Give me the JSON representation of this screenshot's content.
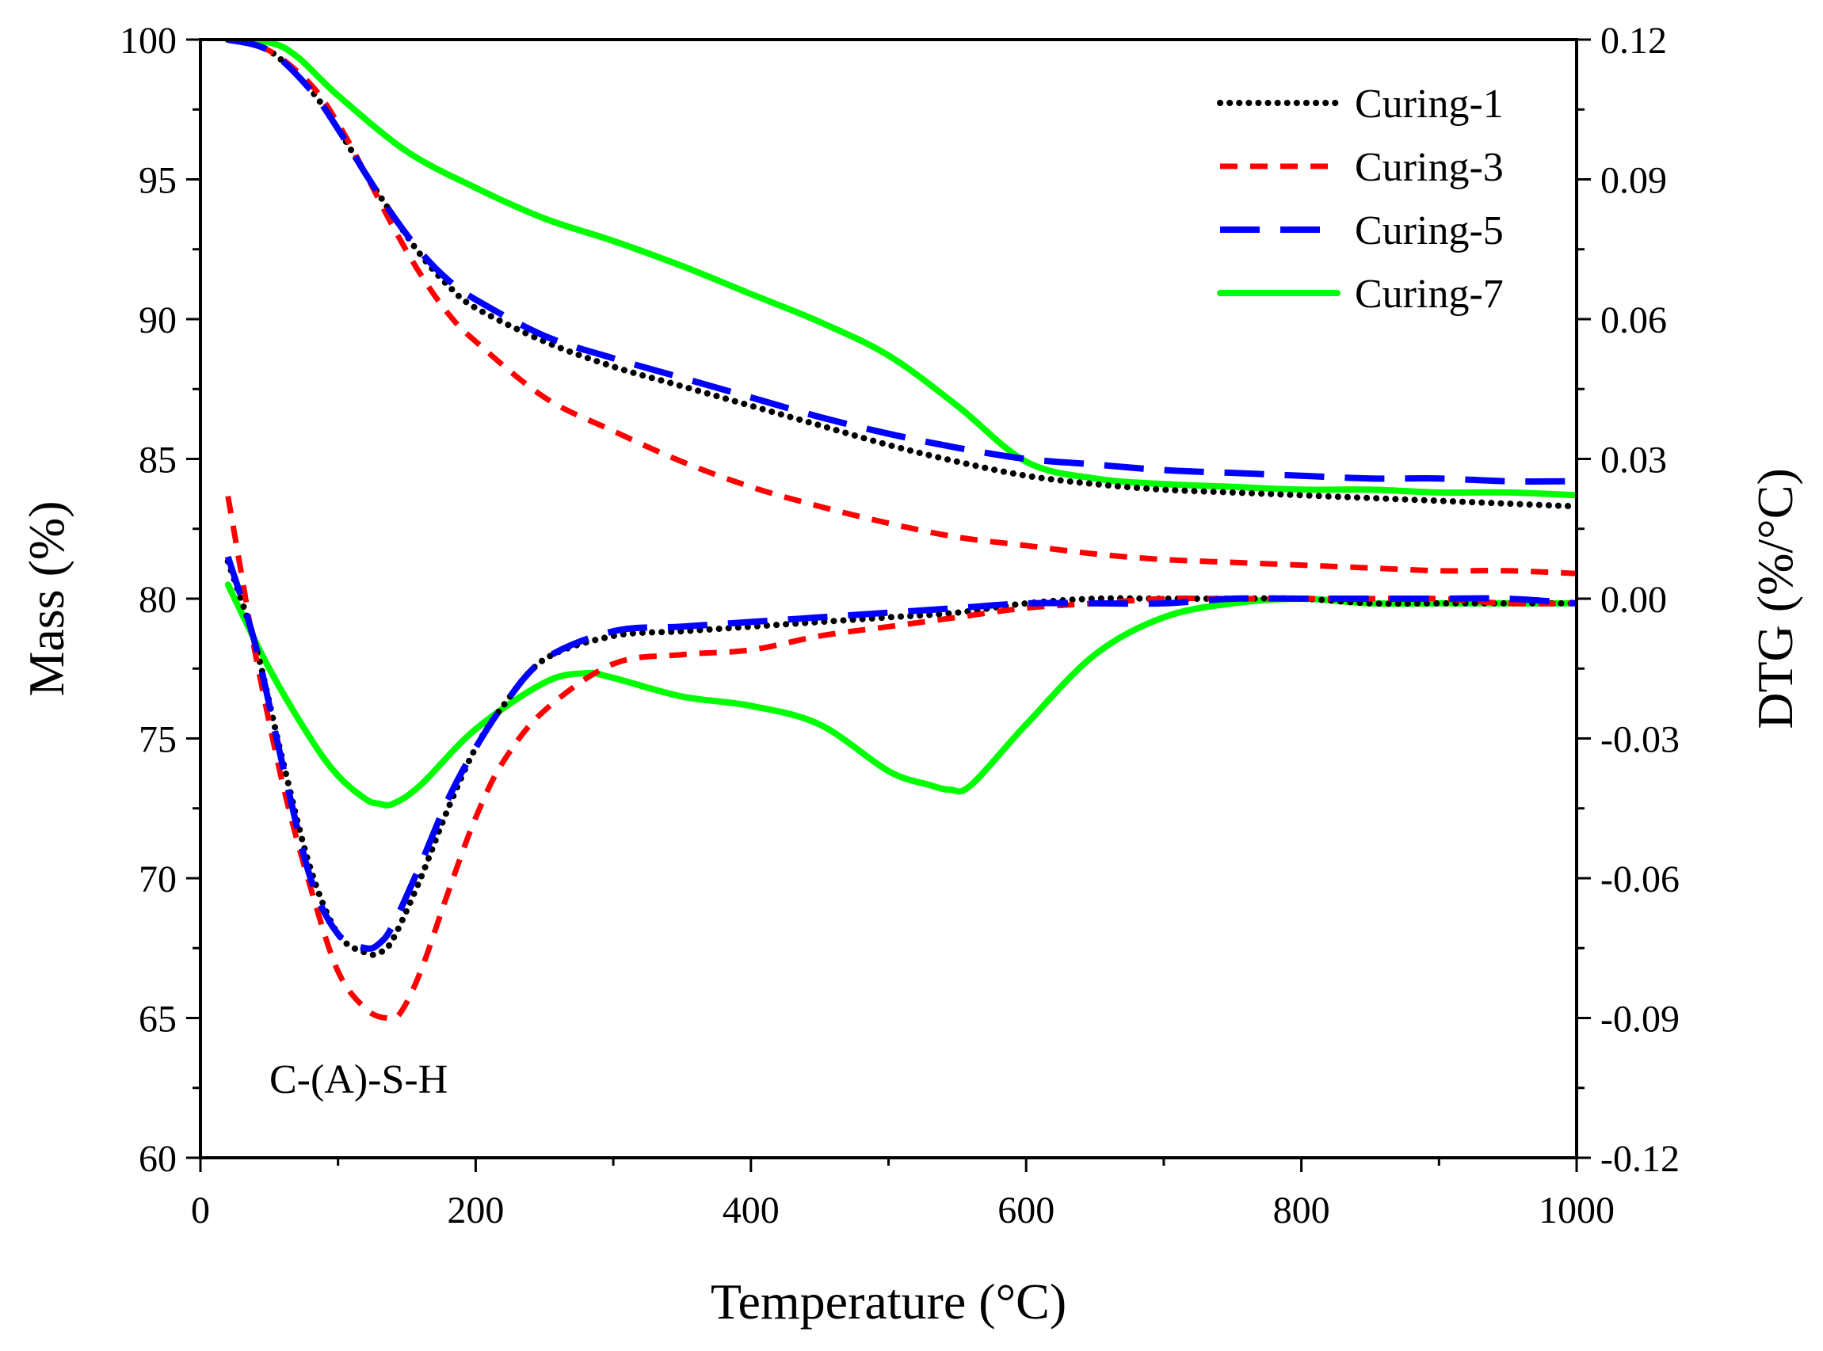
{
  "chart_data": {
    "type": "line",
    "xlabel": "Temperature (°C)",
    "ylabel_left": "Mass (%)",
    "ylabel_right": "DTG (%/°C)",
    "xlim": [
      0,
      1000
    ],
    "ylim_left": [
      60,
      100
    ],
    "ylim_right": [
      -0.12,
      0.12
    ],
    "xticks": [
      "0",
      "200",
      "400",
      "600",
      "800",
      "1000"
    ],
    "yticks_left": [
      "60",
      "65",
      "70",
      "75",
      "80",
      "85",
      "90",
      "95",
      "100"
    ],
    "yticks_right": [
      "-0.12",
      "-0.09",
      "-0.06",
      "-0.03",
      "0.00",
      "0.03",
      "0.06",
      "0.09",
      "0.12"
    ],
    "grid": false,
    "legend_position": "top-right",
    "annotation": "C-(A)-S-H",
    "series": [
      {
        "name": "Curing-1",
        "color": "#000000",
        "dash": "dot",
        "tg": {
          "x": [
            20,
            50,
            80,
            100,
            120,
            140,
            160,
            180,
            200,
            250,
            300,
            350,
            400,
            450,
            500,
            550,
            600,
            650,
            700,
            750,
            800,
            850,
            900,
            950,
            1000
          ],
          "y": [
            100,
            99.6,
            98.2,
            96.8,
            95.2,
            93.7,
            92.3,
            91.2,
            90.4,
            89.2,
            88.3,
            87.6,
            86.9,
            86.2,
            85.5,
            84.9,
            84.4,
            84.1,
            83.9,
            83.8,
            83.7,
            83.6,
            83.5,
            83.4,
            83.3
          ]
        },
        "dtg": {
          "x": [
            20,
            40,
            60,
            80,
            100,
            120,
            130,
            140,
            160,
            180,
            200,
            220,
            250,
            300,
            350,
            400,
            450,
            500,
            550,
            600,
            650,
            700,
            750,
            800,
            850,
            900,
            950,
            1000
          ],
          "y": [
            0.008,
            -0.01,
            -0.035,
            -0.058,
            -0.072,
            -0.076,
            -0.076,
            -0.073,
            -0.06,
            -0.045,
            -0.032,
            -0.023,
            -0.013,
            -0.008,
            -0.007,
            -0.006,
            -0.005,
            -0.004,
            -0.003,
            -0.001,
            0.0,
            0.0,
            0.0,
            0.0,
            -0.001,
            -0.001,
            -0.001,
            -0.001
          ]
        }
      },
      {
        "name": "Curing-3",
        "color": "#ff0000",
        "dash": "short-dash",
        "tg": {
          "x": [
            20,
            50,
            80,
            100,
            120,
            140,
            160,
            180,
            200,
            250,
            300,
            350,
            400,
            450,
            500,
            550,
            600,
            650,
            700,
            750,
            800,
            850,
            900,
            950,
            1000
          ],
          "y": [
            100,
            99.6,
            98.4,
            97.0,
            95.2,
            93.3,
            91.6,
            90.2,
            89.2,
            87.2,
            86.0,
            84.9,
            84.0,
            83.3,
            82.7,
            82.2,
            81.9,
            81.6,
            81.4,
            81.3,
            81.2,
            81.1,
            81.0,
            81.0,
            80.9
          ]
        },
        "dtg": {
          "x": [
            20,
            30,
            40,
            60,
            80,
            100,
            120,
            135,
            145,
            160,
            180,
            200,
            220,
            250,
            300,
            350,
            400,
            450,
            500,
            550,
            600,
            650,
            700,
            750,
            800,
            850,
            900,
            950,
            1000
          ],
          "y": [
            0.022,
            0.005,
            -0.012,
            -0.04,
            -0.062,
            -0.08,
            -0.088,
            -0.09,
            -0.089,
            -0.08,
            -0.063,
            -0.047,
            -0.035,
            -0.024,
            -0.014,
            -0.012,
            -0.011,
            -0.008,
            -0.006,
            -0.004,
            -0.002,
            -0.001,
            0.0,
            0.0,
            0.0,
            0.0,
            0.0,
            -0.001,
            -0.001
          ]
        }
      },
      {
        "name": "Curing-5",
        "color": "#0000ff",
        "dash": "long-dash",
        "tg": {
          "x": [
            20,
            50,
            80,
            100,
            120,
            140,
            160,
            180,
            200,
            250,
            300,
            350,
            400,
            450,
            500,
            550,
            600,
            650,
            700,
            750,
            800,
            850,
            900,
            950,
            1000
          ],
          "y": [
            100,
            99.6,
            98.2,
            96.8,
            95.2,
            93.7,
            92.4,
            91.4,
            90.7,
            89.4,
            88.6,
            87.9,
            87.2,
            86.5,
            85.9,
            85.4,
            85.0,
            84.8,
            84.6,
            84.5,
            84.4,
            84.3,
            84.3,
            84.2,
            84.2
          ]
        },
        "dtg": {
          "x": [
            20,
            40,
            60,
            80,
            100,
            120,
            130,
            140,
            160,
            180,
            200,
            220,
            250,
            300,
            350,
            400,
            450,
            500,
            550,
            600,
            650,
            700,
            750,
            800,
            850,
            900,
            950,
            1000
          ],
          "y": [
            0.009,
            -0.01,
            -0.036,
            -0.06,
            -0.072,
            -0.075,
            -0.074,
            -0.07,
            -0.057,
            -0.043,
            -0.032,
            -0.023,
            -0.013,
            -0.007,
            -0.006,
            -0.005,
            -0.004,
            -0.003,
            -0.002,
            -0.001,
            -0.001,
            -0.001,
            0.0,
            0.0,
            0.0,
            0.0,
            0.0,
            -0.001
          ]
        }
      },
      {
        "name": "Curing-7",
        "color": "#00ff00",
        "dash": "solid",
        "tg": {
          "x": [
            20,
            50,
            70,
            100,
            150,
            200,
            250,
            300,
            350,
            400,
            450,
            500,
            550,
            600,
            650,
            700,
            750,
            800,
            850,
            900,
            950,
            1000
          ],
          "y": [
            100,
            99.9,
            99.4,
            98.0,
            96.0,
            94.7,
            93.6,
            92.8,
            91.9,
            90.9,
            89.9,
            88.7,
            86.9,
            84.9,
            84.3,
            84.1,
            84.0,
            83.9,
            83.9,
            83.8,
            83.8,
            83.7
          ]
        },
        "dtg": {
          "x": [
            20,
            50,
            80,
            100,
            120,
            130,
            140,
            160,
            200,
            250,
            280,
            300,
            350,
            400,
            450,
            500,
            530,
            545,
            560,
            600,
            650,
            700,
            750,
            800,
            850,
            900,
            950,
            1000
          ],
          "y": [
            0.003,
            -0.015,
            -0.03,
            -0.038,
            -0.043,
            -0.044,
            -0.044,
            -0.04,
            -0.028,
            -0.018,
            -0.016,
            -0.017,
            -0.021,
            -0.023,
            -0.027,
            -0.037,
            -0.04,
            -0.041,
            -0.04,
            -0.027,
            -0.012,
            -0.004,
            -0.001,
            0.0,
            -0.001,
            -0.001,
            -0.001,
            -0.001
          ]
        }
      }
    ]
  }
}
